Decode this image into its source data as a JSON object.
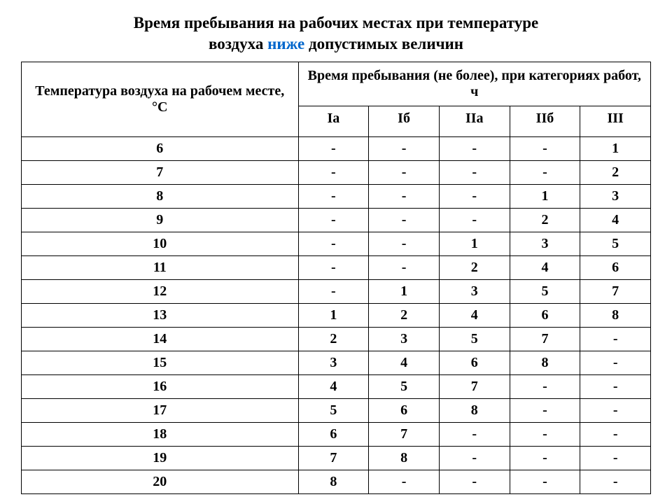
{
  "title": {
    "line1": "Время пребывания на рабочих местах при температуре",
    "line2_pre": "воздуха ",
    "line2_accent": "ниже",
    "line2_post": " допустимых величин",
    "accent_color": "#0066cc",
    "text_color": "#000000",
    "fontsize": 23
  },
  "table": {
    "type": "table",
    "border_color": "#000000",
    "background_color": "#ffffff",
    "cell_fontsize": 20,
    "header_fontsize": 20,
    "header_temp": "Температура воздуха на рабочем месте, °С",
    "header_time": "Время пребывания (не более), при категориях работ, ч",
    "categories": [
      "Iа",
      "Iб",
      "IIа",
      "IIб",
      "III"
    ],
    "col_temp_width_pct": 44,
    "col_cat_width_pct": 11.2,
    "rows": [
      {
        "temp": "6",
        "vals": [
          "-",
          "-",
          "-",
          "-",
          "1"
        ]
      },
      {
        "temp": "7",
        "vals": [
          "-",
          "-",
          "-",
          "-",
          "2"
        ]
      },
      {
        "temp": "8",
        "vals": [
          "-",
          "-",
          "-",
          "1",
          "3"
        ]
      },
      {
        "temp": "9",
        "vals": [
          "-",
          "-",
          "-",
          "2",
          "4"
        ]
      },
      {
        "temp": "10",
        "vals": [
          "-",
          "-",
          "1",
          "3",
          "5"
        ]
      },
      {
        "temp": "11",
        "vals": [
          "-",
          "-",
          "2",
          "4",
          "6"
        ]
      },
      {
        "temp": "12",
        "vals": [
          "-",
          "1",
          "3",
          "5",
          "7"
        ]
      },
      {
        "temp": "13",
        "vals": [
          "1",
          "2",
          "4",
          "6",
          "8"
        ]
      },
      {
        "temp": "14",
        "vals": [
          "2",
          "3",
          "5",
          "7",
          "-"
        ]
      },
      {
        "temp": "15",
        "vals": [
          "3",
          "4",
          "6",
          "8",
          "-"
        ]
      },
      {
        "temp": "16",
        "vals": [
          "4",
          "5",
          "7",
          "-",
          "-"
        ]
      },
      {
        "temp": "17",
        "vals": [
          "5",
          "6",
          "8",
          "-",
          "-"
        ]
      },
      {
        "temp": "18",
        "vals": [
          "6",
          "7",
          "-",
          "-",
          "-"
        ]
      },
      {
        "temp": "19",
        "vals": [
          "7",
          "8",
          "-",
          "-",
          "-"
        ]
      },
      {
        "temp": "20",
        "vals": [
          "8",
          "-",
          "-",
          "-",
          "-"
        ]
      }
    ]
  }
}
